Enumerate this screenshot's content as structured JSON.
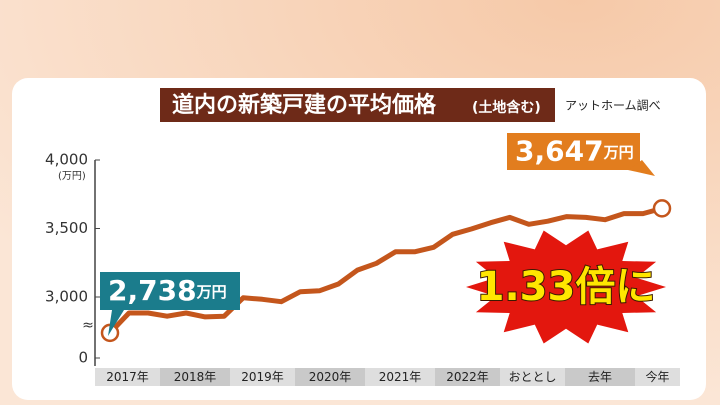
{
  "chart_data": {
    "type": "line",
    "title": "道内の新築戸建の平均価格",
    "subtitle": "(土地含む)",
    "source": "アットホーム調べ",
    "y_unit": "(万円)",
    "x_labels": [
      "2017年",
      "2018年",
      "2019年",
      "2020年",
      "2021年",
      "2022年",
      "おととし",
      "去年",
      "今年"
    ],
    "series": [
      {
        "color": "#c4561c",
        "values": [
          2738,
          2883,
          2883,
          2860,
          2883,
          2855,
          2860,
          2994,
          2983,
          2966,
          3039,
          3045,
          3095,
          3196,
          3246,
          3330,
          3330,
          3363,
          3458,
          3497,
          3542,
          3581,
          3531,
          3553,
          3587,
          3581,
          3564,
          3609,
          3609,
          3647
        ]
      }
    ],
    "ylim": [
      0,
      4000
    ],
    "yticks": [
      0,
      {
        "value": 3000,
        "label": "3,000"
      },
      {
        "value": 3500,
        "label": "3,500"
      },
      {
        "value": 4000,
        "label": "4,000"
      }
    ],
    "axis_break": true,
    "grid": false,
    "annotations": [
      {
        "value": 2738,
        "label": "2,738",
        "unit": "万円",
        "color": "#1b7c8c"
      },
      {
        "value": 3647,
        "label": "3,647",
        "unit": "万円",
        "color": "#e27d1e"
      }
    ],
    "badge": "1.33倍に"
  }
}
